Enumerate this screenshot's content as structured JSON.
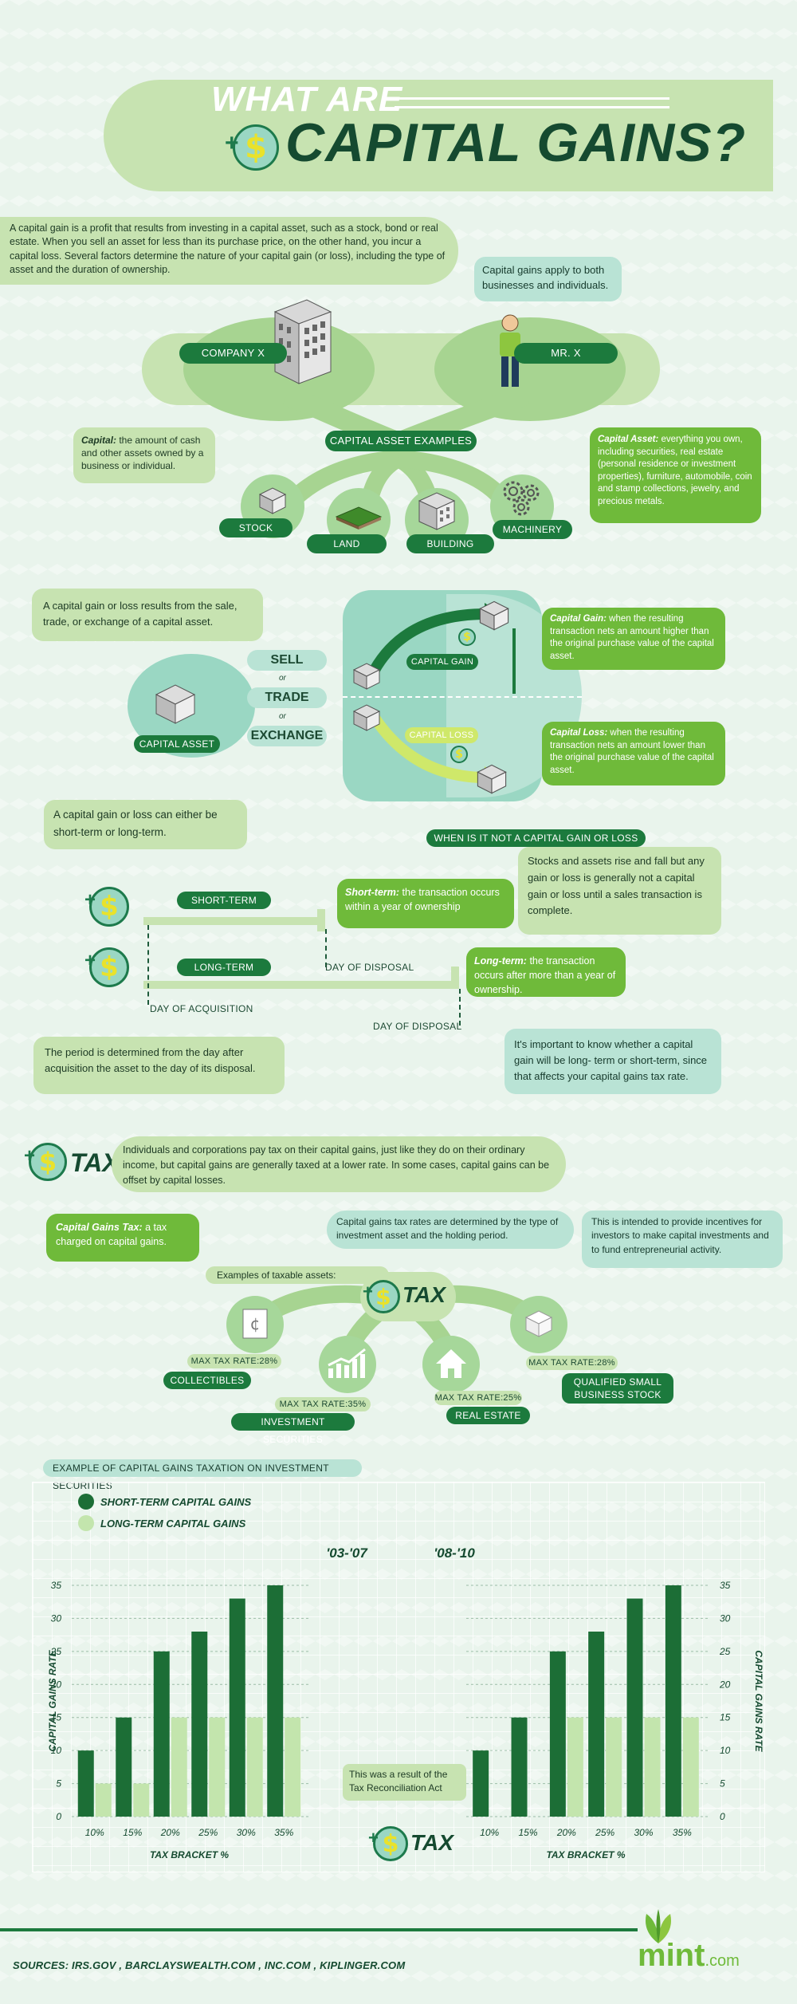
{
  "header": {
    "line1": "WHAT ARE",
    "line2": "CAPITAL GAINS?"
  },
  "intro": "A capital gain is a profit that results from investing in a capital asset, such as a stock, bond or real estate. When you sell an asset for less than its purchase price, on the other hand, you incur a capital loss. Several factors determine the nature of your capital gain (or loss), including the type of asset and the duration of ownership.",
  "applies": "Capital gains apply to both businesses and individuals.",
  "entities": {
    "company": "COMPANY X",
    "person": "MR. X"
  },
  "capital_def": {
    "term": "Capital:",
    "text": " the amount of cash and other assets owned by a business or individual."
  },
  "capital_asset_def": {
    "term": "Capital Asset:",
    "text": " everything you own, including securities, real estate (personal residence or investment properties), furniture, automobile, coin and stamp collections, jewelry, and precious metals."
  },
  "examples_label": "CAPITAL ASSET EXAMPLES",
  "examples": [
    "STOCK",
    "LAND",
    "BUILDING",
    "MACHINERY"
  ],
  "result_text": "A capital gain or loss results from the sale, trade, or exchange of a capital asset.",
  "actions": {
    "sell": "SELL",
    "or1": "or",
    "trade": "TRADE",
    "or2": "or",
    "exchange": "EXCHANGE"
  },
  "capital_asset_label": "CAPITAL ASSET",
  "gain_label": "CAPITAL GAIN",
  "loss_label": "CAPITAL LOSS",
  "gain_def": {
    "term": "Capital Gain:",
    "text": " when the resulting transaction nets an amount higher than the original purchase value of the capital asset."
  },
  "loss_def": {
    "term": "Capital Loss:",
    "text": " when the resulting transaction nets an amount lower than the original purchase value of the capital asset."
  },
  "term_text": "A capital gain or loss can either be short-term or long-term.",
  "not_gain": {
    "header": "WHEN IS IT NOT A CAPITAL GAIN OR LOSS",
    "text": "Stocks and assets rise and fall but any gain or loss is generally not a capital gain or loss until a sales transaction is complete."
  },
  "short_term": {
    "label": "SHORT-TERM",
    "term": "Short-term:",
    "text": " the transaction occurs within a year of ownership"
  },
  "long_term": {
    "label": "LONG-TERM",
    "term": "Long-term:",
    "text": " the transaction occurs after more than a year of ownership."
  },
  "day_disposal": "DAY OF DISPOSAL",
  "day_acquisition": "DAY OF ACQUISITION",
  "period_text": "The period is determined from the day after acquisition the asset to the day of its disposal.",
  "important_text": "It's important to know whether a capital gain will be long- term or short-term, since that affects your capital gains tax rate.",
  "tax_logo": "TAX",
  "tax_intro": "Individuals and corporations pay tax on their capital gains, just like they do on their ordinary income, but capital gains are generally taxed at a lower rate. In some cases, capital gains can be offset by capital losses.",
  "cg_tax_def": {
    "term": "Capital Gains Tax:",
    "text": " a tax charged on capital gains."
  },
  "rates_text": "Capital gains tax rates are determined by the type of investment asset and the holding period.",
  "incentive_text": "This is intended to provide incentives for investors to make capital investments and to fund entrepreneurial activity.",
  "examples_taxable": "Examples of taxable assets:",
  "taxable_assets": [
    {
      "rate": "MAX TAX RATE:28%",
      "name": "COLLECTIBLES",
      "icon": "coin-cent-icon"
    },
    {
      "rate": "MAX TAX RATE:35%",
      "name": "INVESTMENT SECURITIES",
      "icon": "rising-chart-icon"
    },
    {
      "rate": "MAX TAX RATE:25%",
      "name": "REAL ESTATE",
      "icon": "house-icon"
    },
    {
      "rate": "MAX TAX RATE:28%",
      "name": "QUALIFIED SMALL BUSINESS STOCK",
      "icon": "box-icon"
    }
  ],
  "example_heading": "EXAMPLE OF CAPITAL GAINS TAXATION ON INVESTMENT SECURITIES",
  "legend": {
    "short": "SHORT-TERM CAPITAL GAINS",
    "long": "LONG-TERM CAPITAL GAINS"
  },
  "reconciliation_text": "This was a result of the Tax Reconciliation Act",
  "sources": "SOURCES:  IRS.GOV ,  BARCLAYSWEALTH.COM , INC.COM , KIPLINGER.COM",
  "brand": "mint",
  "brand_suffix": ".com",
  "colors": {
    "short": "#1c6e36",
    "long": "#c3e5ad",
    "accent": "#6fba3a"
  },
  "chart_data": [
    {
      "type": "bar",
      "title": "'03-'07",
      "categories": [
        "10%",
        "15%",
        "20%",
        "25%",
        "30%",
        "35%"
      ],
      "xlabel": "TAX BRACKET %",
      "ylabel": "CAPITAL GAINS RATE",
      "ylim": [
        0,
        35
      ],
      "yticks": [
        0,
        5,
        10,
        15,
        20,
        25,
        30,
        35
      ],
      "series": [
        {
          "name": "SHORT-TERM CAPITAL GAINS",
          "values": [
            10,
            15,
            25,
            28,
            33,
            35
          ]
        },
        {
          "name": "LONG-TERM CAPITAL GAINS",
          "values": [
            5,
            5,
            15,
            15,
            15,
            15
          ]
        }
      ]
    },
    {
      "type": "bar",
      "title": "'08-'10",
      "categories": [
        "10%",
        "15%",
        "20%",
        "25%",
        "30%",
        "35%"
      ],
      "xlabel": "TAX BRACKET %",
      "ylabel": "CAPITAL GAINS RATE",
      "ylim": [
        0,
        35
      ],
      "yticks": [
        0,
        5,
        10,
        15,
        20,
        25,
        30,
        35
      ],
      "series": [
        {
          "name": "SHORT-TERM CAPITAL GAINS",
          "values": [
            10,
            15,
            25,
            28,
            33,
            35
          ]
        },
        {
          "name": "LONG-TERM CAPITAL GAINS",
          "values": [
            0,
            0,
            15,
            15,
            15,
            15
          ]
        }
      ]
    }
  ]
}
